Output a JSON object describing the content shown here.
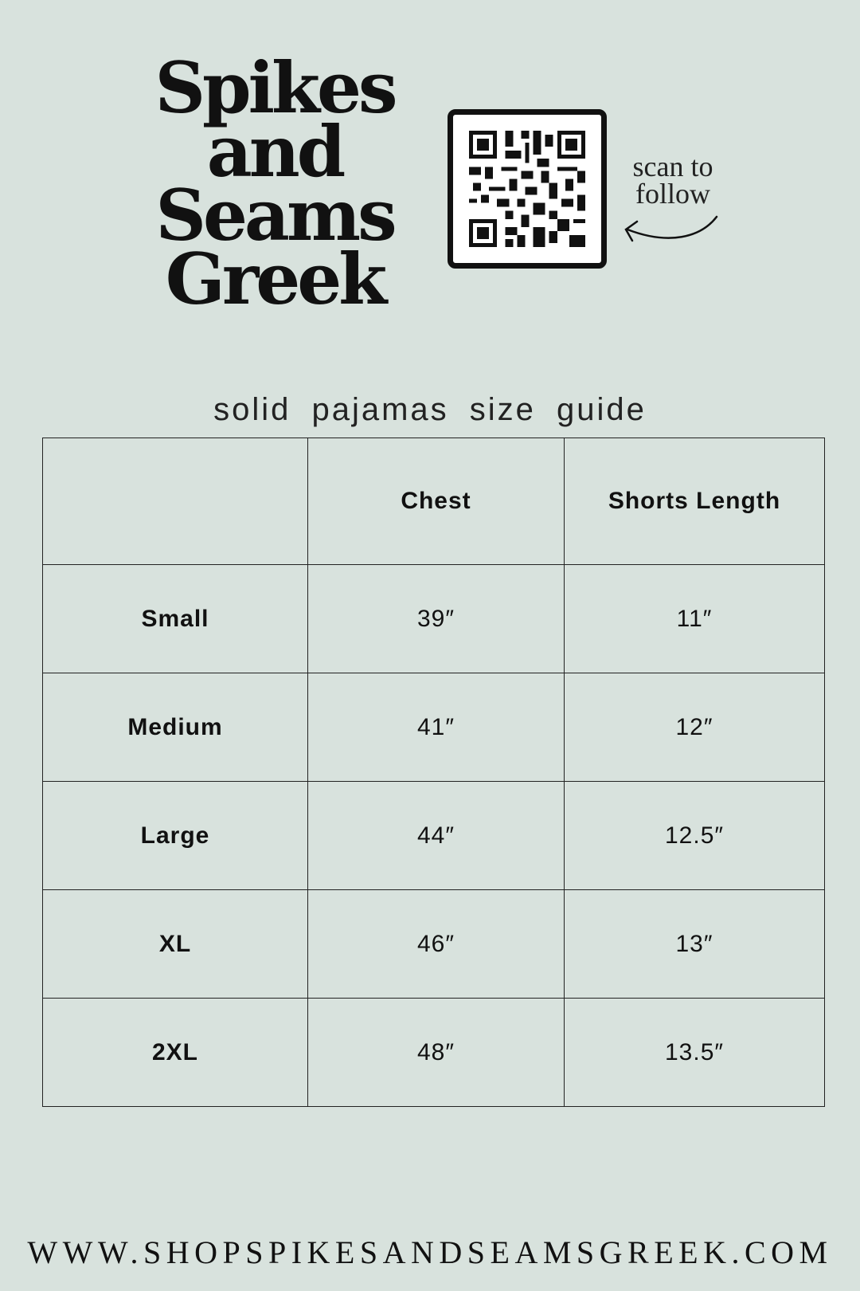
{
  "logo": {
    "lines": [
      "Spikes",
      "and",
      "Seams",
      "Greek"
    ]
  },
  "qr": {
    "caption_line1": "scan to",
    "caption_line2": "follow",
    "icon": "qr-code-icon",
    "arrow_icon": "curved-arrow-left-icon"
  },
  "title": "solid pajamas size guide",
  "table": {
    "headers": [
      "",
      "Chest",
      "Shorts Length"
    ],
    "rows": [
      [
        "Small",
        "39″",
        "11″"
      ],
      [
        "Medium",
        "41″",
        "12″"
      ],
      [
        "Large",
        "44″",
        "12.5″"
      ],
      [
        "XL",
        "46″",
        "13″"
      ],
      [
        "2XL",
        "48″",
        "13.5″"
      ]
    ]
  },
  "footer_url": "WWW.SHOPSPIKESANDSEAMSGREEK.COM",
  "colors": {
    "background": "#d8e2dd",
    "text": "#111111"
  }
}
